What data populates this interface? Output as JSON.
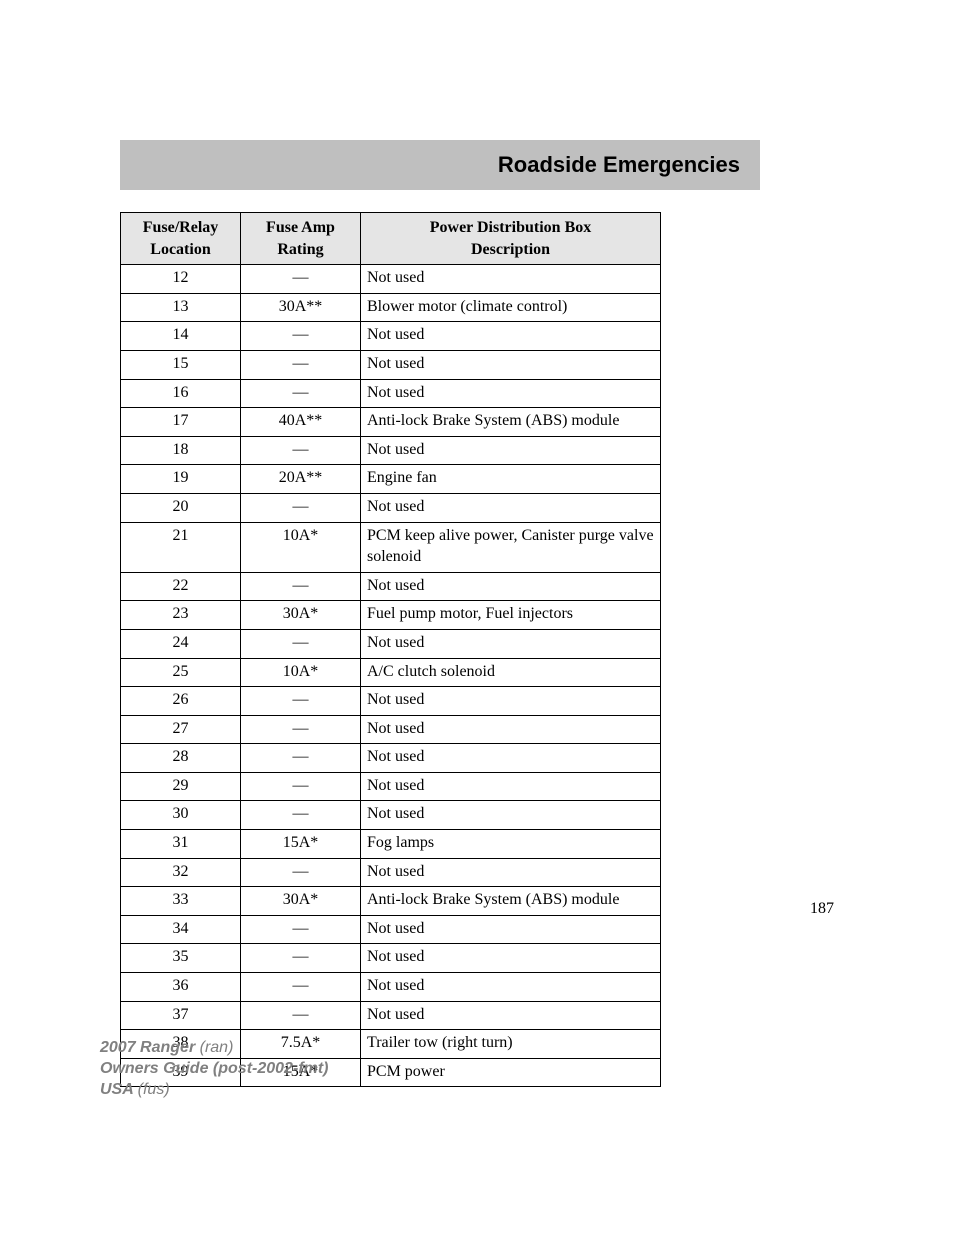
{
  "header": {
    "title": "Roadside Emergencies"
  },
  "table": {
    "headers": {
      "col1_line1": "Fuse/Relay",
      "col1_line2": "Location",
      "col2_line1": "Fuse Amp",
      "col2_line2": "Rating",
      "col3_line1": "Power Distribution Box",
      "col3_line2": "Description"
    },
    "em_dash": "—",
    "rows": [
      {
        "loc": "12",
        "amp": "—",
        "desc": "Not used"
      },
      {
        "loc": "13",
        "amp": "30A**",
        "desc": "Blower motor (climate control)"
      },
      {
        "loc": "14",
        "amp": "—",
        "desc": "Not used"
      },
      {
        "loc": "15",
        "amp": "—",
        "desc": "Not used"
      },
      {
        "loc": "16",
        "amp": "—",
        "desc": "Not used"
      },
      {
        "loc": "17",
        "amp": "40A**",
        "desc": "Anti-lock Brake System (ABS) module"
      },
      {
        "loc": "18",
        "amp": "—",
        "desc": "Not used"
      },
      {
        "loc": "19",
        "amp": "20A**",
        "desc": "Engine fan"
      },
      {
        "loc": "20",
        "amp": "—",
        "desc": "Not used"
      },
      {
        "loc": "21",
        "amp": "10A*",
        "desc": "PCM keep alive power, Canister purge valve solenoid"
      },
      {
        "loc": "22",
        "amp": "—",
        "desc": "Not used"
      },
      {
        "loc": "23",
        "amp": "30A*",
        "desc": "Fuel pump motor, Fuel injectors"
      },
      {
        "loc": "24",
        "amp": "—",
        "desc": "Not used"
      },
      {
        "loc": "25",
        "amp": "10A*",
        "desc": "A/C clutch solenoid"
      },
      {
        "loc": "26",
        "amp": "—",
        "desc": "Not used"
      },
      {
        "loc": "27",
        "amp": "—",
        "desc": "Not used"
      },
      {
        "loc": "28",
        "amp": "—",
        "desc": "Not used"
      },
      {
        "loc": "29",
        "amp": "—",
        "desc": "Not used"
      },
      {
        "loc": "30",
        "amp": "—",
        "desc": "Not used"
      },
      {
        "loc": "31",
        "amp": "15A*",
        "desc": "Fog lamps"
      },
      {
        "loc": "32",
        "amp": "—",
        "desc": "Not used"
      },
      {
        "loc": "33",
        "amp": "30A*",
        "desc": "Anti-lock Brake System (ABS) module"
      },
      {
        "loc": "34",
        "amp": "—",
        "desc": "Not used"
      },
      {
        "loc": "35",
        "amp": "—",
        "desc": "Not used"
      },
      {
        "loc": "36",
        "amp": "—",
        "desc": "Not used"
      },
      {
        "loc": "37",
        "amp": "—",
        "desc": "Not used"
      },
      {
        "loc": "38",
        "amp": "7.5A*",
        "desc": "Trailer tow (right turn)"
      },
      {
        "loc": "39",
        "amp": "15A*",
        "desc": "PCM power"
      }
    ]
  },
  "page_number": "187",
  "footer": {
    "line1_bold": "2007 Ranger ",
    "line1_rest": "(ran)",
    "line2_bold": "Owners Guide (post-2002-fmt)",
    "line3_bold": "USA ",
    "line3_rest": "(fus)"
  }
}
